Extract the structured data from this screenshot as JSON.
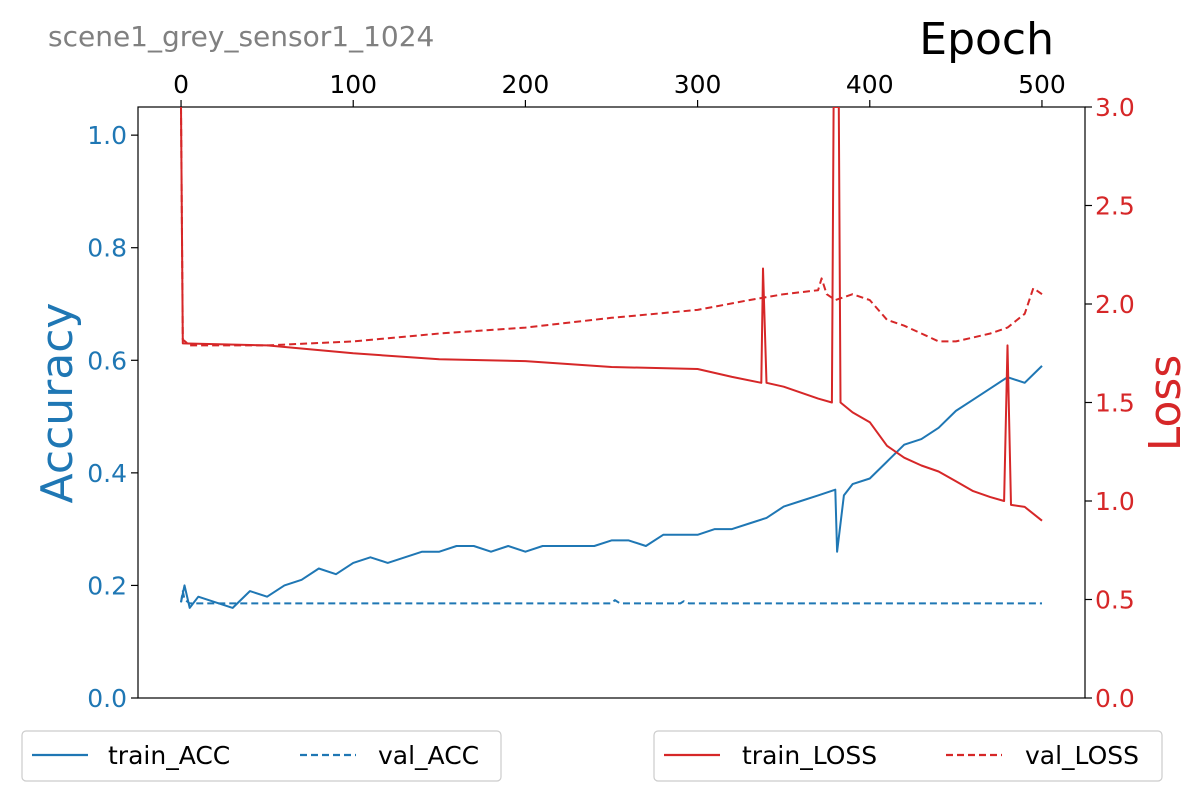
{
  "chart_data": {
    "type": "line",
    "subtitle": "scene1_grey_sensor1_1024",
    "xlabel": "Epoch",
    "ylabel_left": "Accuracy",
    "ylabel_right": "Loss",
    "xlim": [
      -25,
      525
    ],
    "ylim_left": [
      0.0,
      1.05
    ],
    "ylim_right": [
      0.0,
      3.0
    ],
    "x_ticks": [
      0,
      100,
      200,
      300,
      400,
      500
    ],
    "x_tick_labels": [
      "0",
      "100",
      "200",
      "300",
      "400",
      "500"
    ],
    "y_left_ticks": [
      0.0,
      0.2,
      0.4,
      0.6,
      0.8,
      1.0
    ],
    "y_left_tick_labels": [
      "0.0",
      "0.2",
      "0.4",
      "0.6",
      "0.8",
      "1.0"
    ],
    "y_right_ticks": [
      0.0,
      0.5,
      1.0,
      1.5,
      2.0,
      2.5,
      3.0
    ],
    "y_right_tick_labels": [
      "0.0",
      "0.5",
      "1.0",
      "1.5",
      "2.0",
      "2.5",
      "3.0"
    ],
    "colors": {
      "acc": "#1f77b4",
      "loss": "#d62728",
      "subtitle": "#808080"
    },
    "legend_left": [
      "train_ACC",
      "val_ACC"
    ],
    "legend_right": [
      "train_LOSS",
      "val_LOSS"
    ],
    "series": [
      {
        "name": "train_ACC",
        "axis": "left",
        "style": "solid",
        "color": "#1f77b4",
        "points": [
          [
            0,
            0.17
          ],
          [
            2,
            0.2
          ],
          [
            5,
            0.16
          ],
          [
            10,
            0.18
          ],
          [
            20,
            0.17
          ],
          [
            30,
            0.16
          ],
          [
            40,
            0.19
          ],
          [
            50,
            0.18
          ],
          [
            60,
            0.2
          ],
          [
            70,
            0.21
          ],
          [
            80,
            0.23
          ],
          [
            90,
            0.22
          ],
          [
            100,
            0.24
          ],
          [
            110,
            0.25
          ],
          [
            120,
            0.24
          ],
          [
            130,
            0.25
          ],
          [
            140,
            0.26
          ],
          [
            150,
            0.26
          ],
          [
            160,
            0.27
          ],
          [
            170,
            0.27
          ],
          [
            180,
            0.26
          ],
          [
            190,
            0.27
          ],
          [
            200,
            0.26
          ],
          [
            210,
            0.27
          ],
          [
            220,
            0.27
          ],
          [
            230,
            0.27
          ],
          [
            240,
            0.27
          ],
          [
            250,
            0.28
          ],
          [
            260,
            0.28
          ],
          [
            270,
            0.27
          ],
          [
            280,
            0.29
          ],
          [
            290,
            0.29
          ],
          [
            300,
            0.29
          ],
          [
            310,
            0.3
          ],
          [
            320,
            0.3
          ],
          [
            330,
            0.31
          ],
          [
            340,
            0.32
          ],
          [
            350,
            0.34
          ],
          [
            360,
            0.35
          ],
          [
            370,
            0.36
          ],
          [
            380,
            0.37
          ],
          [
            381,
            0.26
          ],
          [
            385,
            0.36
          ],
          [
            390,
            0.38
          ],
          [
            400,
            0.39
          ],
          [
            410,
            0.42
          ],
          [
            420,
            0.45
          ],
          [
            430,
            0.46
          ],
          [
            440,
            0.48
          ],
          [
            450,
            0.51
          ],
          [
            460,
            0.53
          ],
          [
            470,
            0.55
          ],
          [
            480,
            0.57
          ],
          [
            490,
            0.56
          ],
          [
            500,
            0.59
          ]
        ]
      },
      {
        "name": "val_ACC",
        "axis": "left",
        "style": "dashed",
        "color": "#1f77b4",
        "points": [
          [
            0,
            0.17
          ],
          [
            1,
            0.19
          ],
          [
            2,
            0.175
          ],
          [
            5,
            0.168
          ],
          [
            10,
            0.168
          ],
          [
            100,
            0.168
          ],
          [
            200,
            0.168
          ],
          [
            250,
            0.168
          ],
          [
            252,
            0.174
          ],
          [
            255,
            0.168
          ],
          [
            290,
            0.168
          ],
          [
            292,
            0.172
          ],
          [
            295,
            0.168
          ],
          [
            400,
            0.168
          ],
          [
            500,
            0.168
          ]
        ]
      },
      {
        "name": "train_LOSS",
        "axis": "right",
        "style": "solid",
        "color": "#d62728",
        "points": [
          [
            0,
            3.0
          ],
          [
            1,
            1.8
          ],
          [
            50,
            1.79
          ],
          [
            100,
            1.75
          ],
          [
            150,
            1.72
          ],
          [
            200,
            1.71
          ],
          [
            250,
            1.68
          ],
          [
            300,
            1.67
          ],
          [
            320,
            1.63
          ],
          [
            337,
            1.6
          ],
          [
            338,
            2.18
          ],
          [
            340,
            1.6
          ],
          [
            350,
            1.58
          ],
          [
            370,
            1.52
          ],
          [
            378,
            1.5
          ],
          [
            379,
            3.0
          ],
          [
            382,
            3.0
          ],
          [
            383,
            1.5
          ],
          [
            390,
            1.45
          ],
          [
            400,
            1.4
          ],
          [
            410,
            1.28
          ],
          [
            420,
            1.22
          ],
          [
            430,
            1.18
          ],
          [
            440,
            1.15
          ],
          [
            450,
            1.1
          ],
          [
            460,
            1.05
          ],
          [
            470,
            1.02
          ],
          [
            478,
            1.0
          ],
          [
            480,
            1.79
          ],
          [
            482,
            0.98
          ],
          [
            490,
            0.97
          ],
          [
            500,
            0.9
          ]
        ]
      },
      {
        "name": "val_LOSS",
        "axis": "right",
        "style": "dashed",
        "color": "#d62728",
        "points": [
          [
            0,
            3.0
          ],
          [
            1,
            1.82
          ],
          [
            5,
            1.79
          ],
          [
            50,
            1.79
          ],
          [
            100,
            1.81
          ],
          [
            150,
            1.85
          ],
          [
            200,
            1.88
          ],
          [
            250,
            1.93
          ],
          [
            300,
            1.97
          ],
          [
            330,
            2.02
          ],
          [
            350,
            2.05
          ],
          [
            370,
            2.07
          ],
          [
            372,
            2.13
          ],
          [
            375,
            2.05
          ],
          [
            380,
            2.02
          ],
          [
            390,
            2.05
          ],
          [
            400,
            2.02
          ],
          [
            410,
            1.92
          ],
          [
            420,
            1.89
          ],
          [
            430,
            1.85
          ],
          [
            440,
            1.81
          ],
          [
            450,
            1.81
          ],
          [
            460,
            1.83
          ],
          [
            470,
            1.85
          ],
          [
            480,
            1.88
          ],
          [
            490,
            1.95
          ],
          [
            495,
            2.08
          ],
          [
            500,
            2.05
          ]
        ]
      }
    ]
  }
}
